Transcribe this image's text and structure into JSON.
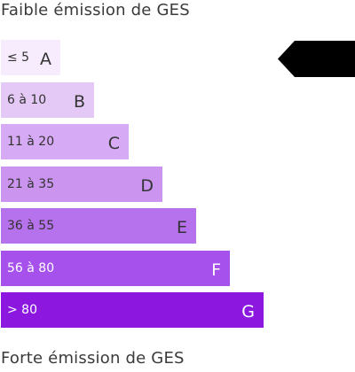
{
  "labels": {
    "top": "Faible émission de GES",
    "bottom": "Forte émission de GES"
  },
  "chart_data": {
    "type": "bar",
    "orientation": "horizontal",
    "categories": [
      "A",
      "B",
      "C",
      "D",
      "E",
      "F",
      "G"
    ],
    "ranges": [
      "≤ 5",
      "6 à 10",
      "11 à 20",
      "21 à 35",
      "36 à 55",
      "56 à 80",
      "> 80"
    ],
    "values": [
      1,
      2,
      3,
      4,
      5,
      6,
      7
    ],
    "colors": [
      "#f6ecfd",
      "#e4c9f6",
      "#d6aaf4",
      "#cb95ef",
      "#b671ec",
      "#a651ec",
      "#8c18e0"
    ],
    "text_colors": [
      "#333333",
      "#333333",
      "#333333",
      "#333333",
      "#333333",
      "#ffffff",
      "#ffffff"
    ],
    "selected": "A",
    "marker_color": "#000000"
  }
}
